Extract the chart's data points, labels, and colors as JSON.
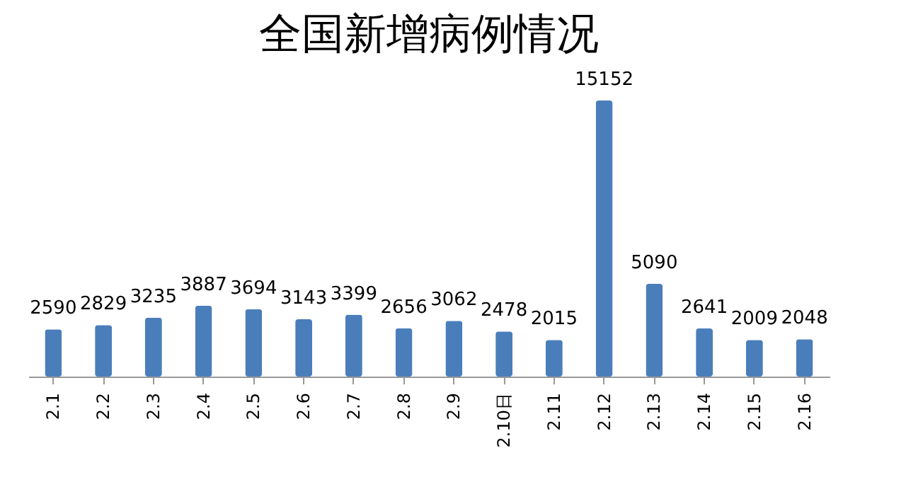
{
  "chart_data": {
    "type": "bar",
    "title": "全国新增病例情况",
    "categories": [
      "2.1",
      "2.2",
      "2.3",
      "2.4",
      "2.5",
      "2.6",
      "2.7",
      "2.8",
      "2.9",
      "2.10日",
      "2.11",
      "2.12",
      "2.13",
      "2.14",
      "2.15",
      "2.16"
    ],
    "values": [
      2590,
      2829,
      3235,
      3887,
      3694,
      3143,
      3399,
      2656,
      3062,
      2478,
      2015,
      15152,
      5090,
      2641,
      2009,
      2048
    ],
    "color": "#4a7ebb",
    "data_labels": true
  }
}
